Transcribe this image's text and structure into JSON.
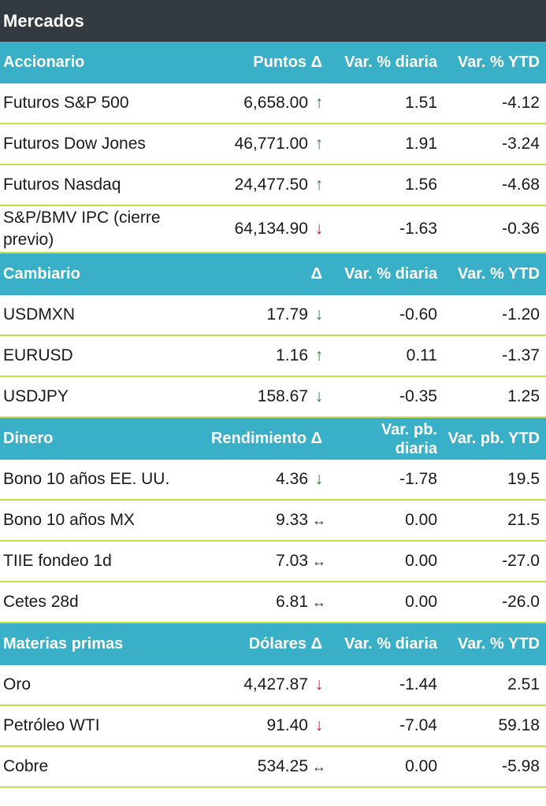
{
  "title": "Mercados",
  "sections": [
    {
      "header": {
        "name": "Accionario",
        "value": "Puntos Δ",
        "daily": "Var. % diaria",
        "ytd": "Var. % YTD"
      },
      "rows": [
        {
          "name": "Futuros S&P 500",
          "value": "6,658.00",
          "arrow": "↑",
          "daily": "1.51",
          "ytd": "-4.12"
        },
        {
          "name": "Futuros Dow Jones",
          "value": "46,771.00",
          "arrow": "↑",
          "daily": "1.91",
          "ytd": "-3.24"
        },
        {
          "name": "Futuros Nasdaq",
          "value": "24,477.50",
          "arrow": "↑",
          "daily": "1.56",
          "ytd": "-4.68"
        },
        {
          "name": "S&P/BMV IPC (cierre previo)",
          "value": "64,134.90",
          "arrow": "↓",
          "daily": "-1.63",
          "ytd": "-0.36"
        }
      ]
    },
    {
      "header": {
        "name": "Cambiario",
        "value": "Δ",
        "daily": "Var. % diaria",
        "ytd": "Var. % YTD"
      },
      "rows": [
        {
          "name": "USDMXN",
          "value": "17.79",
          "arrow": "↓",
          "daily": "-0.60",
          "ytd": "-1.20"
        },
        {
          "name": "EURUSD",
          "value": "1.16",
          "arrow": "↑",
          "daily": "0.11",
          "ytd": "-1.37"
        },
        {
          "name": "USDJPY",
          "value": "158.67",
          "arrow": "↓",
          "daily": "-0.35",
          "ytd": "1.25"
        }
      ]
    },
    {
      "header": {
        "name": "Dinero",
        "value": "Rendimiento Δ",
        "daily_line1": "Var. pb.",
        "daily_line2": "diaria",
        "ytd": "Var. pb. YTD"
      },
      "rows": [
        {
          "name": "Bono 10 años EE. UU.",
          "value": "4.36",
          "arrow": "↓",
          "daily": "-1.78",
          "ytd": "19.5"
        },
        {
          "name": "Bono 10 años MX",
          "value": "9.33",
          "arrow": "↔",
          "daily": "0.00",
          "ytd": "21.5"
        },
        {
          "name": "TIIE fondeo 1d",
          "value": "7.03",
          "arrow": "↔",
          "daily": "0.00",
          "ytd": "-27.0"
        },
        {
          "name": "Cetes 28d",
          "value": "6.81",
          "arrow": "↔",
          "daily": "0.00",
          "ytd": "-26.0"
        }
      ]
    },
    {
      "header": {
        "name": "Materias primas",
        "value": "Dólares Δ",
        "daily": "Var. % diaria",
        "ytd": "Var. % YTD"
      },
      "rows": [
        {
          "name": "Oro",
          "value": "4,427.87",
          "arrow": "↓",
          "daily": "-1.44",
          "ytd": "2.51"
        },
        {
          "name": "Petróleo WTI",
          "value": "91.40",
          "arrow": "↓",
          "daily": "-7.04",
          "ytd": "59.18"
        },
        {
          "name": "Cobre",
          "value": "534.25",
          "arrow": "↔",
          "daily": "0.00",
          "ytd": "-5.98"
        }
      ]
    }
  ],
  "colors": {
    "title_bg": "#333a42",
    "header_bg": "#3ab0c8",
    "row_divider": "#c9dc4a",
    "arrow_up": "#1a8a2a",
    "arrow_down_red": "#d0161c",
    "arrow_down_green": "#1a8a2a"
  }
}
